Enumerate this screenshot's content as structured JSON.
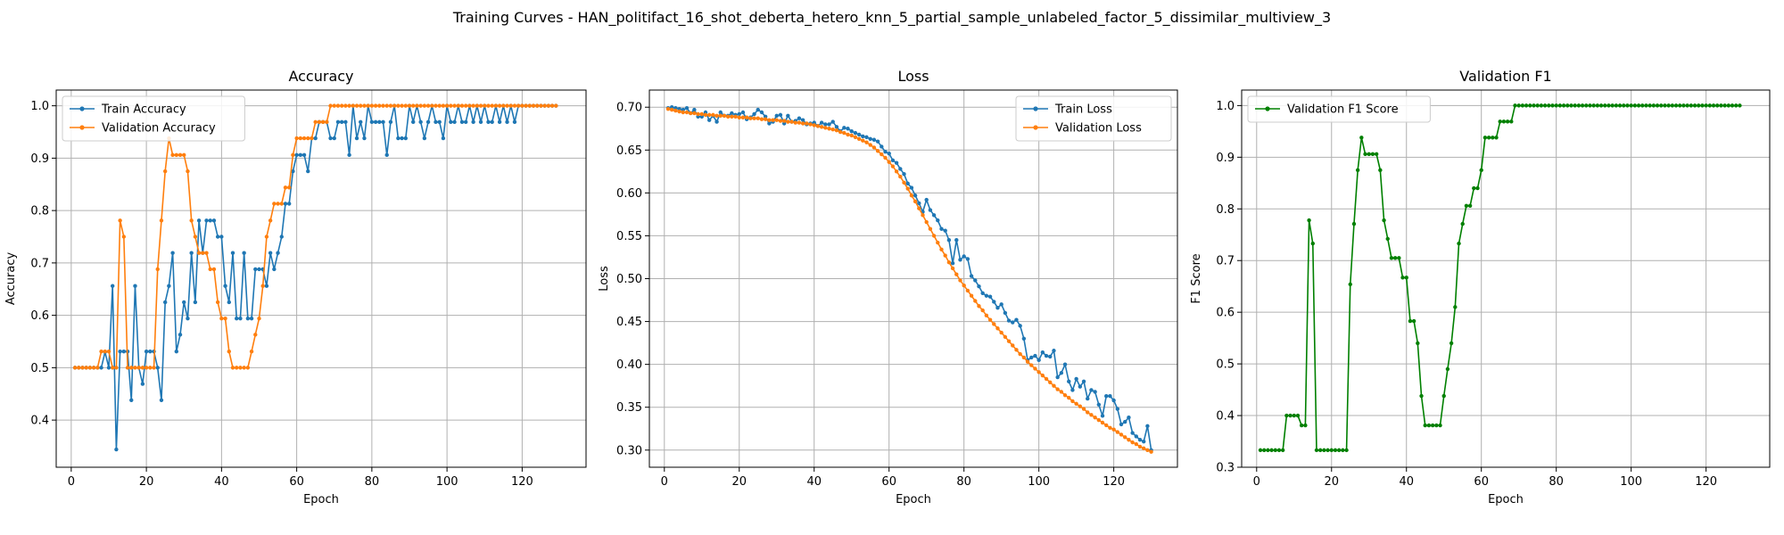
{
  "figure": {
    "title": "Training Curves - HAN_politifact_16_shot_deberta_hetero_knn_5_partial_sample_unlabeled_factor_5_dissimilar_multiview_3"
  },
  "colors": {
    "blue": "#1f77b4",
    "orange": "#ff7f0e",
    "green": "#008000"
  },
  "chart_data": [
    {
      "type": "line",
      "title": "Accuracy",
      "xlabel": "Epoch",
      "ylabel": "Accuracy",
      "xlim": [
        -4,
        137
      ],
      "ylim": [
        0.31,
        1.03
      ],
      "xticks": [
        0,
        20,
        40,
        60,
        80,
        100,
        120
      ],
      "yticks": [
        0.4,
        0.5,
        0.6,
        0.7,
        0.8,
        0.9,
        1.0
      ],
      "ytick_labels": [
        "0.4",
        "0.5",
        "0.6",
        "0.7",
        "0.8",
        "0.9",
        "1.0"
      ],
      "grid": true,
      "legend": "upper-left",
      "x_start": 1,
      "series": [
        {
          "name": "Train Accuracy",
          "color": "#1f77b4",
          "values": [
            0.5,
            0.5,
            0.5,
            0.5,
            0.5,
            0.5,
            0.5,
            0.5,
            0.53,
            0.5,
            0.656,
            0.344,
            0.531,
            0.531,
            0.531,
            0.438,
            0.656,
            0.5,
            0.469,
            0.531,
            0.531,
            0.531,
            0.5,
            0.438,
            0.625,
            0.656,
            0.719,
            0.531,
            0.563,
            0.625,
            0.594,
            0.719,
            0.625,
            0.781,
            0.719,
            0.781,
            0.781,
            0.781,
            0.75,
            0.75,
            0.656,
            0.625,
            0.719,
            0.594,
            0.594,
            0.719,
            0.594,
            0.594,
            0.688,
            0.688,
            0.688,
            0.656,
            0.719,
            0.688,
            0.719,
            0.75,
            0.813,
            0.813,
            0.875,
            0.906,
            0.906,
            0.906,
            0.875,
            0.938,
            0.938,
            0.969,
            0.969,
            0.969,
            0.938,
            0.938,
            0.969,
            0.969,
            0.969,
            0.906,
            1.0,
            0.938,
            0.969,
            0.938,
            1.0,
            0.969,
            0.969,
            0.969,
            0.969,
            0.906,
            0.969,
            1.0,
            0.938,
            0.938,
            0.938,
            1.0,
            0.969,
            1.0,
            0.969,
            0.938,
            0.969,
            1.0,
            0.969,
            0.969,
            0.938,
            1.0,
            0.969,
            0.969,
            1.0,
            0.969,
            0.969,
            1.0,
            0.969,
            1.0,
            0.969,
            1.0,
            0.969,
            0.969,
            1.0,
            0.969,
            1.0,
            0.969,
            1.0,
            0.969,
            1.0,
            1.0,
            1.0,
            1.0,
            1.0,
            1.0,
            1.0,
            1.0,
            1.0,
            1.0,
            1.0
          ]
        },
        {
          "name": "Validation Accuracy",
          "color": "#ff7f0e",
          "values": [
            0.5,
            0.5,
            0.5,
            0.5,
            0.5,
            0.5,
            0.5,
            0.531,
            0.531,
            0.531,
            0.5,
            0.5,
            0.781,
            0.75,
            0.5,
            0.5,
            0.5,
            0.5,
            0.5,
            0.5,
            0.5,
            0.5,
            0.688,
            0.781,
            0.875,
            0.938,
            0.906,
            0.906,
            0.906,
            0.906,
            0.875,
            0.781,
            0.75,
            0.719,
            0.719,
            0.719,
            0.688,
            0.688,
            0.625,
            0.594,
            0.594,
            0.531,
            0.5,
            0.5,
            0.5,
            0.5,
            0.5,
            0.531,
            0.563,
            0.594,
            0.656,
            0.75,
            0.781,
            0.813,
            0.813,
            0.813,
            0.844,
            0.844,
            0.906,
            0.938,
            0.938,
            0.938,
            0.938,
            0.938,
            0.969,
            0.969,
            0.969,
            0.969,
            1.0,
            1.0,
            1.0,
            1.0,
            1.0,
            1.0,
            1.0,
            1.0,
            1.0,
            1.0,
            1.0,
            1.0,
            1.0,
            1.0,
            1.0,
            1.0,
            1.0,
            1.0,
            1.0,
            1.0,
            1.0,
            1.0,
            1.0,
            1.0,
            1.0,
            1.0,
            1.0,
            1.0,
            1.0,
            1.0,
            1.0,
            1.0,
            1.0,
            1.0,
            1.0,
            1.0,
            1.0,
            1.0,
            1.0,
            1.0,
            1.0,
            1.0,
            1.0,
            1.0,
            1.0,
            1.0,
            1.0,
            1.0,
            1.0,
            1.0,
            1.0,
            1.0,
            1.0,
            1.0,
            1.0,
            1.0,
            1.0,
            1.0,
            1.0,
            1.0,
            1.0
          ]
        }
      ]
    },
    {
      "type": "line",
      "title": "Loss",
      "xlabel": "Epoch",
      "ylabel": "Loss",
      "xlim": [
        -4,
        137
      ],
      "ylim": [
        0.28,
        0.72
      ],
      "xticks": [
        0,
        20,
        40,
        60,
        80,
        100,
        120
      ],
      "yticks": [
        0.3,
        0.35,
        0.4,
        0.45,
        0.5,
        0.55,
        0.6,
        0.65,
        0.7
      ],
      "ytick_labels": [
        "0.30",
        "0.35",
        "0.40",
        "0.45",
        "0.50",
        "0.55",
        "0.60",
        "0.65",
        "0.70"
      ],
      "grid": true,
      "legend": "upper-right",
      "x_start": 1,
      "series": [
        {
          "name": "Train Loss",
          "color": "#1f77b4",
          "values": [
            0.699,
            0.7,
            0.699,
            0.698,
            0.697,
            0.699,
            0.693,
            0.697,
            0.689,
            0.689,
            0.694,
            0.685,
            0.69,
            0.683,
            0.694,
            0.69,
            0.69,
            0.693,
            0.691,
            0.692,
            0.694,
            0.686,
            0.688,
            0.692,
            0.697,
            0.694,
            0.689,
            0.681,
            0.683,
            0.69,
            0.691,
            0.681,
            0.69,
            0.683,
            0.684,
            0.687,
            0.685,
            0.68,
            0.681,
            0.682,
            0.678,
            0.682,
            0.68,
            0.68,
            0.683,
            0.677,
            0.672,
            0.676,
            0.675,
            0.672,
            0.67,
            0.668,
            0.666,
            0.665,
            0.663,
            0.662,
            0.66,
            0.654,
            0.648,
            0.646,
            0.638,
            0.635,
            0.628,
            0.622,
            0.611,
            0.606,
            0.597,
            0.588,
            0.578,
            0.592,
            0.58,
            0.574,
            0.568,
            0.558,
            0.556,
            0.545,
            0.518,
            0.545,
            0.522,
            0.526,
            0.523,
            0.503,
            0.498,
            0.491,
            0.483,
            0.48,
            0.479,
            0.473,
            0.466,
            0.47,
            0.46,
            0.451,
            0.449,
            0.452,
            0.445,
            0.43,
            0.405,
            0.408,
            0.41,
            0.405,
            0.414,
            0.41,
            0.409,
            0.416,
            0.385,
            0.39,
            0.4,
            0.38,
            0.37,
            0.383,
            0.374,
            0.38,
            0.36,
            0.37,
            0.368,
            0.353,
            0.34,
            0.363,
            0.363,
            0.358,
            0.348,
            0.33,
            0.333,
            0.338,
            0.32,
            0.316,
            0.312,
            0.31,
            0.328,
            0.3
          ]
        },
        {
          "name": "Validation Loss",
          "color": "#ff7f0e",
          "values": [
            0.698,
            0.697,
            0.696,
            0.695,
            0.694,
            0.694,
            0.693,
            0.693,
            0.692,
            0.692,
            0.691,
            0.691,
            0.691,
            0.69,
            0.69,
            0.69,
            0.689,
            0.689,
            0.689,
            0.688,
            0.688,
            0.688,
            0.687,
            0.687,
            0.687,
            0.686,
            0.686,
            0.685,
            0.685,
            0.685,
            0.684,
            0.684,
            0.683,
            0.683,
            0.682,
            0.682,
            0.681,
            0.681,
            0.68,
            0.679,
            0.678,
            0.677,
            0.676,
            0.675,
            0.674,
            0.673,
            0.671,
            0.67,
            0.668,
            0.667,
            0.665,
            0.663,
            0.661,
            0.659,
            0.656,
            0.653,
            0.649,
            0.645,
            0.641,
            0.636,
            0.631,
            0.625,
            0.619,
            0.612,
            0.605,
            0.597,
            0.59,
            0.582,
            0.574,
            0.566,
            0.558,
            0.55,
            0.542,
            0.534,
            0.527,
            0.519,
            0.512,
            0.505,
            0.498,
            0.492,
            0.486,
            0.48,
            0.474,
            0.468,
            0.463,
            0.457,
            0.452,
            0.447,
            0.442,
            0.437,
            0.432,
            0.427,
            0.422,
            0.417,
            0.412,
            0.408,
            0.403,
            0.399,
            0.395,
            0.391,
            0.387,
            0.383,
            0.379,
            0.375,
            0.371,
            0.368,
            0.364,
            0.361,
            0.357,
            0.354,
            0.351,
            0.348,
            0.344,
            0.341,
            0.338,
            0.335,
            0.332,
            0.329,
            0.326,
            0.324,
            0.321,
            0.318,
            0.315,
            0.312,
            0.309,
            0.307,
            0.304,
            0.302,
            0.3,
            0.298
          ]
        }
      ]
    },
    {
      "type": "line",
      "title": "Validation F1",
      "xlabel": "Epoch",
      "ylabel": "F1 Score",
      "xlim": [
        -4,
        137
      ],
      "ylim": [
        0.3,
        1.03
      ],
      "xticks": [
        0,
        20,
        40,
        60,
        80,
        100,
        120
      ],
      "yticks": [
        0.3,
        0.4,
        0.5,
        0.6,
        0.7,
        0.8,
        0.9,
        1.0
      ],
      "ytick_labels": [
        "0.3",
        "0.4",
        "0.5",
        "0.6",
        "0.7",
        "0.8",
        "0.9",
        "1.0"
      ],
      "grid": true,
      "legend": "upper-left",
      "x_start": 1,
      "series": [
        {
          "name": "Validation F1 Score",
          "color": "#008000",
          "values": [
            0.333,
            0.333,
            0.333,
            0.333,
            0.333,
            0.333,
            0.333,
            0.4,
            0.4,
            0.4,
            0.4,
            0.381,
            0.381,
            0.778,
            0.733,
            0.333,
            0.333,
            0.333,
            0.333,
            0.333,
            0.333,
            0.333,
            0.333,
            0.333,
            0.654,
            0.771,
            0.875,
            0.938,
            0.906,
            0.906,
            0.906,
            0.906,
            0.875,
            0.778,
            0.742,
            0.705,
            0.705,
            0.705,
            0.667,
            0.667,
            0.583,
            0.583,
            0.54,
            0.438,
            0.381,
            0.381,
            0.381,
            0.381,
            0.381,
            0.438,
            0.49,
            0.54,
            0.61,
            0.733,
            0.771,
            0.806,
            0.806,
            0.84,
            0.84,
            0.875,
            0.938,
            0.938,
            0.938,
            0.938,
            0.969,
            0.969,
            0.969,
            0.969,
            1.0,
            1.0,
            1.0,
            1.0,
            1.0,
            1.0,
            1.0,
            1.0,
            1.0,
            1.0,
            1.0,
            1.0,
            1.0,
            1.0,
            1.0,
            1.0,
            1.0,
            1.0,
            1.0,
            1.0,
            1.0,
            1.0,
            1.0,
            1.0,
            1.0,
            1.0,
            1.0,
            1.0,
            1.0,
            1.0,
            1.0,
            1.0,
            1.0,
            1.0,
            1.0,
            1.0,
            1.0,
            1.0,
            1.0,
            1.0,
            1.0,
            1.0,
            1.0,
            1.0,
            1.0,
            1.0,
            1.0,
            1.0,
            1.0,
            1.0,
            1.0,
            1.0,
            1.0,
            1.0,
            1.0,
            1.0,
            1.0,
            1.0,
            1.0,
            1.0,
            1.0
          ]
        }
      ]
    }
  ]
}
